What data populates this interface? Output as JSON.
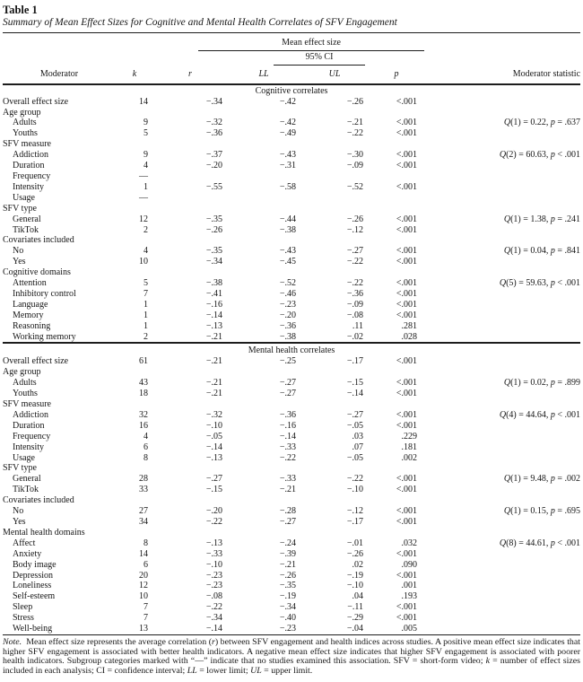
{
  "colors": {
    "text": "#161616",
    "background": "#ffffff"
  },
  "title": "Table 1",
  "subtitle": "Summary of Mean Effect Sizes for Cognitive and Mental Health Correlates of SFV Engagement",
  "header": {
    "moderator": "Moderator",
    "k": "k",
    "mean_effect_size": "Mean effect size",
    "ci": "95% CI",
    "r": "r",
    "ll": "LL",
    "ul": "UL",
    "p": "p",
    "moderator_statistic": "Moderator statistic"
  },
  "sections": [
    {
      "label": "Cognitive correlates",
      "rows": [
        {
          "moderator": "Overall effect size",
          "indent": 0,
          "k": "14",
          "r": "−.34",
          "ll": "−.42",
          "ul": "−.26",
          "p": "<.001",
          "stat": ""
        },
        {
          "moderator": "Age group",
          "indent": 0,
          "k": "",
          "r": "",
          "ll": "",
          "ul": "",
          "p": "",
          "stat": ""
        },
        {
          "moderator": "Adults",
          "indent": 1,
          "k": "9",
          "r": "−.32",
          "ll": "−.42",
          "ul": "−.21",
          "p": "<.001",
          "stat": "Q(1) = 0.22, p = .637"
        },
        {
          "moderator": "Youths",
          "indent": 1,
          "k": "5",
          "r": "−.36",
          "ll": "−.49",
          "ul": "−.22",
          "p": "<.001",
          "stat": ""
        },
        {
          "moderator": "SFV measure",
          "indent": 0,
          "k": "",
          "r": "",
          "ll": "",
          "ul": "",
          "p": "",
          "stat": ""
        },
        {
          "moderator": "Addiction",
          "indent": 1,
          "k": "9",
          "r": "−.37",
          "ll": "−.43",
          "ul": "−.30",
          "p": "<.001",
          "stat": "Q(2) = 60.63, p < .001"
        },
        {
          "moderator": "Duration",
          "indent": 1,
          "k": "4",
          "r": "−.20",
          "ll": "−.31",
          "ul": "−.09",
          "p": "<.001",
          "stat": ""
        },
        {
          "moderator": "Frequency",
          "indent": 1,
          "k": "—",
          "r": "",
          "ll": "",
          "ul": "",
          "p": "",
          "stat": ""
        },
        {
          "moderator": "Intensity",
          "indent": 1,
          "k": "1",
          "r": "−.55",
          "ll": "−.58",
          "ul": "−.52",
          "p": "<.001",
          "stat": ""
        },
        {
          "moderator": "Usage",
          "indent": 1,
          "k": "—",
          "r": "",
          "ll": "",
          "ul": "",
          "p": "",
          "stat": ""
        },
        {
          "moderator": "SFV type",
          "indent": 0,
          "k": "",
          "r": "",
          "ll": "",
          "ul": "",
          "p": "",
          "stat": ""
        },
        {
          "moderator": "General",
          "indent": 1,
          "k": "12",
          "r": "−.35",
          "ll": "−.44",
          "ul": "−.26",
          "p": "<.001",
          "stat": "Q(1) = 1.38, p = .241"
        },
        {
          "moderator": "TikTok",
          "indent": 1,
          "k": "2",
          "r": "−.26",
          "ll": "−.38",
          "ul": "−.12",
          "p": "<.001",
          "stat": ""
        },
        {
          "moderator": "Covariates included",
          "indent": 0,
          "k": "",
          "r": "",
          "ll": "",
          "ul": "",
          "p": "",
          "stat": ""
        },
        {
          "moderator": "No",
          "indent": 1,
          "k": "4",
          "r": "−.35",
          "ll": "−.43",
          "ul": "−.27",
          "p": "<.001",
          "stat": "Q(1) = 0.04, p = .841"
        },
        {
          "moderator": "Yes",
          "indent": 1,
          "k": "10",
          "r": "−.34",
          "ll": "−.45",
          "ul": "−.22",
          "p": "<.001",
          "stat": ""
        },
        {
          "moderator": "Cognitive domains",
          "indent": 0,
          "k": "",
          "r": "",
          "ll": "",
          "ul": "",
          "p": "",
          "stat": ""
        },
        {
          "moderator": "Attention",
          "indent": 1,
          "k": "5",
          "r": "−.38",
          "ll": "−.52",
          "ul": "−.22",
          "p": "<.001",
          "stat": "Q(5) = 59.63, p < .001"
        },
        {
          "moderator": "Inhibitory control",
          "indent": 1,
          "k": "7",
          "r": "−.41",
          "ll": "−.46",
          "ul": "−.36",
          "p": "<.001",
          "stat": ""
        },
        {
          "moderator": "Language",
          "indent": 1,
          "k": "1",
          "r": "−.16",
          "ll": "−.23",
          "ul": "−.09",
          "p": "<.001",
          "stat": ""
        },
        {
          "moderator": "Memory",
          "indent": 1,
          "k": "1",
          "r": "−.14",
          "ll": "−.20",
          "ul": "−.08",
          "p": "<.001",
          "stat": ""
        },
        {
          "moderator": "Reasoning",
          "indent": 1,
          "k": "1",
          "r": "−.13",
          "ll": "−.36",
          "ul": ".11",
          "p": ".281",
          "stat": ""
        },
        {
          "moderator": "Working memory",
          "indent": 1,
          "k": "2",
          "r": "−.21",
          "ll": "−.38",
          "ul": "−.02",
          "p": ".028",
          "stat": ""
        }
      ]
    },
    {
      "label": "Mental health correlates",
      "rows": [
        {
          "moderator": "Overall effect size",
          "indent": 0,
          "k": "61",
          "r": "−.21",
          "ll": "−.25",
          "ul": "−.17",
          "p": "<.001",
          "stat": ""
        },
        {
          "moderator": "Age group",
          "indent": 0,
          "k": "",
          "r": "",
          "ll": "",
          "ul": "",
          "p": "",
          "stat": ""
        },
        {
          "moderator": "Adults",
          "indent": 1,
          "k": "43",
          "r": "−.21",
          "ll": "−.27",
          "ul": "−.15",
          "p": "<.001",
          "stat": "Q(1) = 0.02, p = .899"
        },
        {
          "moderator": "Youths",
          "indent": 1,
          "k": "18",
          "r": "−.21",
          "ll": "−.27",
          "ul": "−.14",
          "p": "<.001",
          "stat": ""
        },
        {
          "moderator": "SFV measure",
          "indent": 0,
          "k": "",
          "r": "",
          "ll": "",
          "ul": "",
          "p": "",
          "stat": ""
        },
        {
          "moderator": "Addiction",
          "indent": 1,
          "k": "32",
          "r": "−.32",
          "ll": "−.36",
          "ul": "−.27",
          "p": "<.001",
          "stat": "Q(4) = 44.64, p < .001"
        },
        {
          "moderator": "Duration",
          "indent": 1,
          "k": "16",
          "r": "−.10",
          "ll": "−.16",
          "ul": "−.05",
          "p": "<.001",
          "stat": ""
        },
        {
          "moderator": "Frequency",
          "indent": 1,
          "k": "4",
          "r": "−.05",
          "ll": "−.14",
          "ul": ".03",
          "p": ".229",
          "stat": ""
        },
        {
          "moderator": "Intensity",
          "indent": 1,
          "k": "6",
          "r": "−.14",
          "ll": "−.33",
          "ul": ".07",
          "p": ".181",
          "stat": ""
        },
        {
          "moderator": "Usage",
          "indent": 1,
          "k": "8",
          "r": "−.13",
          "ll": "−.22",
          "ul": "−.05",
          "p": ".002",
          "stat": ""
        },
        {
          "moderator": "SFV type",
          "indent": 0,
          "k": "",
          "r": "",
          "ll": "",
          "ul": "",
          "p": "",
          "stat": ""
        },
        {
          "moderator": "General",
          "indent": 1,
          "k": "28",
          "r": "−.27",
          "ll": "−.33",
          "ul": "−.22",
          "p": "<.001",
          "stat": "Q(1) = 9.48, p = .002"
        },
        {
          "moderator": "TikTok",
          "indent": 1,
          "k": "33",
          "r": "−.15",
          "ll": "−.21",
          "ul": "−.10",
          "p": "<.001",
          "stat": ""
        },
        {
          "moderator": "Covariates included",
          "indent": 0,
          "k": "",
          "r": "",
          "ll": "",
          "ul": "",
          "p": "",
          "stat": ""
        },
        {
          "moderator": "No",
          "indent": 1,
          "k": "27",
          "r": "−.20",
          "ll": "−.28",
          "ul": "−.12",
          "p": "<.001",
          "stat": "Q(1) = 0.15, p = .695"
        },
        {
          "moderator": "Yes",
          "indent": 1,
          "k": "34",
          "r": "−.22",
          "ll": "−.27",
          "ul": "−.17",
          "p": "<.001",
          "stat": ""
        },
        {
          "moderator": "Mental health domains",
          "indent": 0,
          "k": "",
          "r": "",
          "ll": "",
          "ul": "",
          "p": "",
          "stat": ""
        },
        {
          "moderator": "Affect",
          "indent": 1,
          "k": "8",
          "r": "−.13",
          "ll": "−.24",
          "ul": "−.01",
          "p": ".032",
          "stat": "Q(8) = 44.61, p < .001"
        },
        {
          "moderator": "Anxiety",
          "indent": 1,
          "k": "14",
          "r": "−.33",
          "ll": "−.39",
          "ul": "−.26",
          "p": "<.001",
          "stat": ""
        },
        {
          "moderator": "Body image",
          "indent": 1,
          "k": "6",
          "r": "−.10",
          "ll": "−.21",
          "ul": ".02",
          "p": ".090",
          "stat": ""
        },
        {
          "moderator": "Depression",
          "indent": 1,
          "k": "20",
          "r": "−.23",
          "ll": "−.26",
          "ul": "−.19",
          "p": "<.001",
          "stat": ""
        },
        {
          "moderator": "Loneliness",
          "indent": 1,
          "k": "12",
          "r": "−.23",
          "ll": "−.35",
          "ul": "−.10",
          "p": ".001",
          "stat": ""
        },
        {
          "moderator": "Self-esteem",
          "indent": 1,
          "k": "10",
          "r": "−.08",
          "ll": "−.19",
          "ul": ".04",
          "p": ".193",
          "stat": ""
        },
        {
          "moderator": "Sleep",
          "indent": 1,
          "k": "7",
          "r": "−.22",
          "ll": "−.34",
          "ul": "−.11",
          "p": "<.001",
          "stat": ""
        },
        {
          "moderator": "Stress",
          "indent": 1,
          "k": "7",
          "r": "−.34",
          "ll": "−.40",
          "ul": "−.29",
          "p": "<.001",
          "stat": ""
        },
        {
          "moderator": "Well-being",
          "indent": 1,
          "k": "13",
          "r": "−.14",
          "ll": "−.23",
          "ul": "−.04",
          "p": ".005",
          "stat": ""
        }
      ]
    }
  ],
  "note": {
    "label": "Note.",
    "segments": [
      {
        "t": "Mean effect size represents the average correlation (",
        "i": false
      },
      {
        "t": "r",
        "i": true
      },
      {
        "t": ") between SFV engagement and health indices across studies. A positive mean effect size indicates that higher SFV engagement is associated with better health indicators. A negative mean effect size indicates that higher SFV engagement is associated with poorer health indicators. Subgroup categories marked with “—” indicate that no studies examined this association. SFV = short-form video; ",
        "i": false
      },
      {
        "t": "k",
        "i": true
      },
      {
        "t": " = number of effect sizes included in each analysis; CI = confidence interval; ",
        "i": false
      },
      {
        "t": "LL",
        "i": true
      },
      {
        "t": " = lower limit; ",
        "i": false
      },
      {
        "t": "UL",
        "i": true
      },
      {
        "t": " = upper limit.",
        "i": false
      }
    ]
  }
}
